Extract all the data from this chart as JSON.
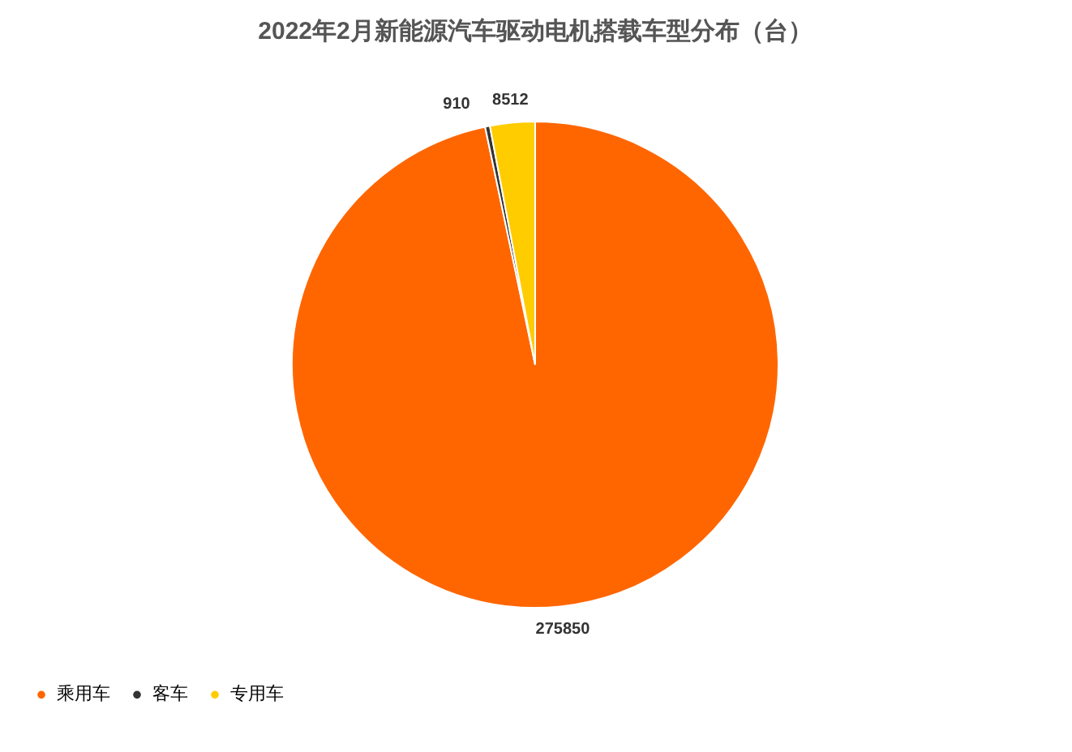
{
  "chart_data": {
    "type": "pie",
    "title": "2022年2月新能源汽车驱动电机搭载车型分布（台）",
    "categories": [
      "乘用车",
      "客车",
      "专用车"
    ],
    "values": [
      275850,
      910,
      8512
    ],
    "colors": [
      "#ff6600",
      "#333333",
      "#ffcc00"
    ],
    "data_labels": true,
    "legend": "bottom"
  }
}
